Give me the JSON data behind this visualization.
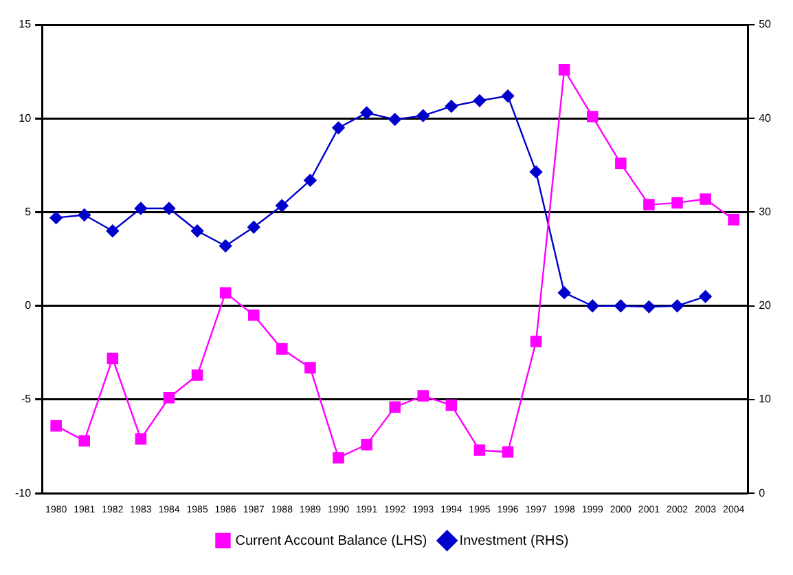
{
  "chart_data": {
    "type": "line",
    "categories": [
      "1980",
      "1981",
      "1982",
      "1983",
      "1984",
      "1985",
      "1986",
      "1987",
      "1988",
      "1989",
      "1990",
      "1991",
      "1992",
      "1993",
      "1994",
      "1995",
      "1996",
      "1997",
      "1998",
      "1999",
      "2000",
      "2001",
      "2002",
      "2003",
      "2004"
    ],
    "series": [
      {
        "name": "Current Account Balance (LHS)",
        "color": "#ff00ff",
        "marker": "square",
        "values": [
          -6.4,
          -7.2,
          -2.8,
          -7.1,
          -4.9,
          -3.7,
          0.7,
          -0.5,
          -2.3,
          -3.3,
          -8.1,
          -7.4,
          -5.4,
          -4.8,
          -5.3,
          -7.7,
          -7.8,
          -1.9,
          12.6,
          10.1,
          7.6,
          5.4,
          5.5,
          5.7,
          4.6
        ]
      },
      {
        "name": "Investment (RHS)",
        "color": "#0000cc",
        "marker": "diamond",
        "axis": "y2",
        "values": [
          29.4,
          29.7,
          28,
          30.4,
          30.4,
          28,
          26.4,
          28.4,
          30.7,
          33.4,
          39,
          40.6,
          39.9,
          40.3,
          41.3,
          41.9,
          42.4,
          34.3,
          21.4,
          20,
          20,
          19.9,
          20,
          21,
          null
        ]
      }
    ],
    "ylim": [
      -10,
      15
    ],
    "yticks": [
      -10,
      -5,
      0,
      5,
      10,
      15
    ],
    "y2lim": [
      0,
      50
    ],
    "y2ticks": [
      0,
      10,
      20,
      30,
      40,
      50
    ],
    "grid": "y",
    "legend": "bottom"
  }
}
